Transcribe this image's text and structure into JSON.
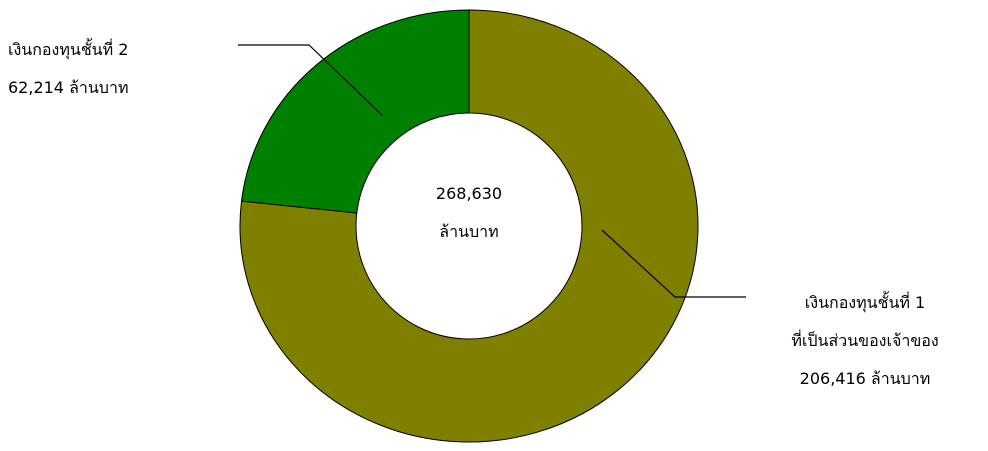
{
  "chart_data": {
    "type": "pie",
    "variant": "donut",
    "total_label": {
      "value": "268,630",
      "unit": "ล้านบาท"
    },
    "slices": [
      {
        "name_lines": [
          "เงินกองทุนชั้นที่ 1",
          "ที่เป็นส่วนของเจ้าของ"
        ],
        "value": 206416,
        "value_label": "206,416 ล้านบาท",
        "color": "#808000"
      },
      {
        "name_lines": [
          "เงินกองทุนชั้นที่ 2"
        ],
        "value": 62214,
        "value_label": "62,214 ล้านบาท",
        "color": "#008000"
      }
    ]
  }
}
